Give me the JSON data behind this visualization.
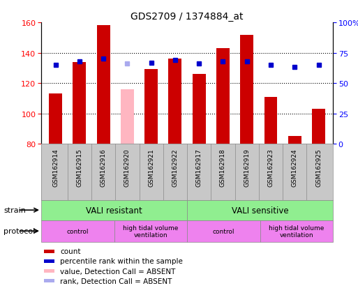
{
  "title": "GDS2709 / 1374884_at",
  "samples": [
    "GSM162914",
    "GSM162915",
    "GSM162916",
    "GSM162920",
    "GSM162921",
    "GSM162922",
    "GSM162917",
    "GSM162918",
    "GSM162919",
    "GSM162923",
    "GSM162924",
    "GSM162925"
  ],
  "count_values": [
    113,
    134,
    158,
    116,
    129,
    136,
    126,
    143,
    152,
    111,
    85,
    103
  ],
  "count_absent": [
    false,
    false,
    false,
    true,
    false,
    false,
    false,
    false,
    false,
    false,
    false,
    false
  ],
  "percentile_values": [
    65,
    68,
    70,
    66,
    67,
    69,
    66,
    68,
    68,
    65,
    63,
    65
  ],
  "percentile_absent": [
    false,
    false,
    false,
    true,
    false,
    false,
    false,
    false,
    false,
    false,
    false,
    false
  ],
  "ymin": 80,
  "ymax": 160,
  "yticks_left": [
    80,
    100,
    120,
    140,
    160
  ],
  "yticks_right": [
    0,
    25,
    50,
    75,
    100
  ],
  "bar_color_normal": "#CC0000",
  "bar_color_absent": "#FFB6C1",
  "dot_color_normal": "#0000CC",
  "dot_color_absent": "#AAAAEE",
  "strain_labels": [
    "VALI resistant",
    "VALI sensitive"
  ],
  "strain_ranges": [
    [
      0,
      6
    ],
    [
      6,
      12
    ]
  ],
  "strain_color": "#90EE90",
  "protocol_labels": [
    "control",
    "high tidal volume\nventilation",
    "control",
    "high tidal volume\nventilation"
  ],
  "protocol_ranges": [
    [
      0,
      3
    ],
    [
      3,
      6
    ],
    [
      6,
      9
    ],
    [
      9,
      12
    ]
  ],
  "protocol_color": "#EE82EE",
  "legend_labels": [
    "count",
    "percentile rank within the sample",
    "value, Detection Call = ABSENT",
    "rank, Detection Call = ABSENT"
  ],
  "legend_colors": [
    "#CC0000",
    "#0000CC",
    "#FFB6C1",
    "#AAAAEE"
  ],
  "sample_bg_color": "#C8C8C8",
  "border_color": "#888888"
}
